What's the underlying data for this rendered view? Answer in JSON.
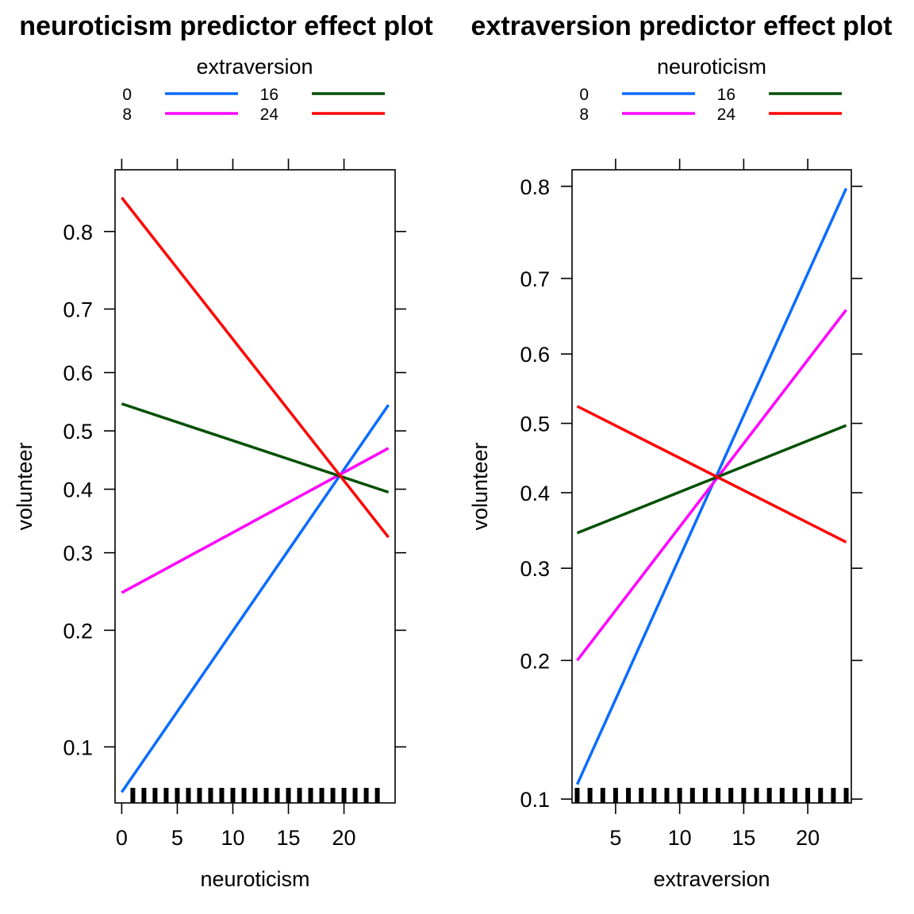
{
  "chart_data": [
    {
      "type": "line",
      "title": "neuroticism predictor effect plot",
      "xlabel": "neuroticism",
      "ylabel": "volunteer",
      "y_scale": "logit",
      "xlim": [
        -0.6,
        24.6
      ],
      "ylim": [
        0.07,
        0.86
      ],
      "x_ticks": [
        0,
        5,
        10,
        15,
        20
      ],
      "y_ticks": [
        0.1,
        0.2,
        0.3,
        0.4,
        0.5,
        0.6,
        0.7,
        0.8
      ],
      "grid": false,
      "legend": {
        "title": "extraversion",
        "position": "top",
        "columns": 2
      },
      "series": [
        {
          "name": "0",
          "color": "#0a6cff",
          "x": [
            0,
            24
          ],
          "y": [
            0.075,
            0.545
          ]
        },
        {
          "name": "8",
          "color": "#ff00ff",
          "x": [
            0,
            24
          ],
          "y": [
            0.245,
            0.47
          ]
        },
        {
          "name": "16",
          "color": "#005000",
          "x": [
            0,
            24
          ],
          "y": [
            0.547,
            0.395
          ]
        },
        {
          "name": "24",
          "color": "#ff0000",
          "x": [
            0,
            24
          ],
          "y": [
            0.835,
            0.323
          ]
        }
      ],
      "rug": [
        1,
        2,
        3,
        4,
        5,
        6,
        7,
        8,
        9,
        10,
        11,
        12,
        13,
        14,
        15,
        16,
        17,
        18,
        19,
        20,
        21,
        22,
        23
      ]
    },
    {
      "type": "line",
      "title": "extraversion predictor effect plot",
      "xlabel": "extraversion",
      "ylabel": "volunteer",
      "y_scale": "logit",
      "xlim": [
        1.6,
        23.4
      ],
      "ylim": [
        0.098,
        0.815
      ],
      "x_ticks": [
        5,
        10,
        15,
        20
      ],
      "y_ticks": [
        0.1,
        0.2,
        0.3,
        0.4,
        0.5,
        0.6,
        0.7,
        0.8
      ],
      "grid": false,
      "legend": {
        "title": "neuroticism",
        "position": "top",
        "columns": 2
      },
      "series": [
        {
          "name": "0",
          "color": "#0a6cff",
          "x": [
            2,
            23
          ],
          "y": [
            0.108,
            0.798
          ]
        },
        {
          "name": "8",
          "color": "#ff00ff",
          "x": [
            2,
            23
          ],
          "y": [
            0.2,
            0.66
          ]
        },
        {
          "name": "16",
          "color": "#005000",
          "x": [
            2,
            23
          ],
          "y": [
            0.345,
            0.497
          ]
        },
        {
          "name": "24",
          "color": "#ff0000",
          "x": [
            2,
            23
          ],
          "y": [
            0.525,
            0.333
          ]
        }
      ],
      "rug": [
        2,
        3,
        4,
        5,
        6,
        7,
        8,
        9,
        10,
        11,
        12,
        13,
        14,
        15,
        16,
        17,
        18,
        19,
        20,
        21,
        22,
        23
      ]
    }
  ]
}
